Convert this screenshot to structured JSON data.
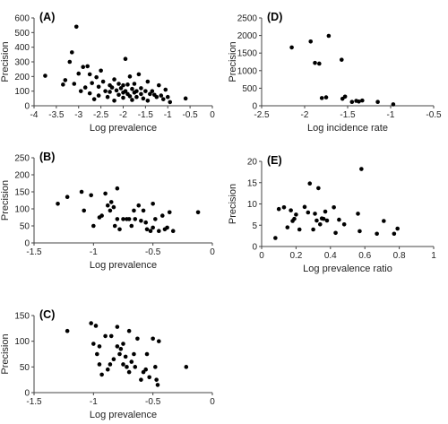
{
  "chart_data": [
    {
      "panel": "(A)",
      "type": "scatter",
      "xlabel": "Log prevalence",
      "ylabel": "Precision",
      "xlim": [
        -4,
        0
      ],
      "ylim": [
        0,
        600
      ],
      "xticks": [
        -4,
        -3.5,
        -3,
        -2.5,
        -2,
        -1.5,
        -1,
        -0.5,
        0
      ],
      "yticks": [
        0,
        100,
        200,
        300,
        400,
        500,
        600
      ],
      "points": [
        [
          -3.75,
          205
        ],
        [
          -3.35,
          145
        ],
        [
          -3.3,
          175
        ],
        [
          -3.2,
          300
        ],
        [
          -3.15,
          365
        ],
        [
          -3.1,
          150
        ],
        [
          -3.05,
          540
        ],
        [
          -3.0,
          220
        ],
        [
          -2.95,
          100
        ],
        [
          -2.9,
          265
        ],
        [
          -2.85,
          125
        ],
        [
          -2.8,
          270
        ],
        [
          -2.75,
          215
        ],
        [
          -2.75,
          85
        ],
        [
          -2.7,
          155
        ],
        [
          -2.65,
          45
        ],
        [
          -2.6,
          195
        ],
        [
          -2.55,
          70
        ],
        [
          -2.55,
          130
        ],
        [
          -2.5,
          240
        ],
        [
          -2.45,
          165
        ],
        [
          -2.4,
          100
        ],
        [
          -2.35,
          60
        ],
        [
          -2.3,
          95
        ],
        [
          -2.3,
          140
        ],
        [
          -2.25,
          125
        ],
        [
          -2.2,
          180
        ],
        [
          -2.2,
          35
        ],
        [
          -2.15,
          105
        ],
        [
          -2.1,
          150
        ],
        [
          -2.1,
          75
        ],
        [
          -2.05,
          120
        ],
        [
          -2.0,
          90
        ],
        [
          -2.0,
          140
        ],
        [
          -2.0,
          55
        ],
        [
          -1.95,
          320
        ],
        [
          -1.95,
          100
        ],
        [
          -1.9,
          145
        ],
        [
          -1.9,
          80
        ],
        [
          -1.85,
          200
        ],
        [
          -1.85,
          65
        ],
        [
          -1.8,
          115
        ],
        [
          -1.8,
          40
        ],
        [
          -1.75,
          150
        ],
        [
          -1.75,
          90
        ],
        [
          -1.7,
          100
        ],
        [
          -1.7,
          60
        ],
        [
          -1.65,
          215
        ],
        [
          -1.6,
          80
        ],
        [
          -1.6,
          120
        ],
        [
          -1.55,
          50
        ],
        [
          -1.5,
          100
        ],
        [
          -1.45,
          165
        ],
        [
          -1.45,
          35
        ],
        [
          -1.4,
          80
        ],
        [
          -1.35,
          100
        ],
        [
          -1.3,
          75
        ],
        [
          -1.25,
          60
        ],
        [
          -1.2,
          140
        ],
        [
          -1.15,
          70
        ],
        [
          -1.1,
          45
        ],
        [
          -1.05,
          110
        ],
        [
          -1.0,
          60
        ],
        [
          -0.95,
          25
        ],
        [
          -0.6,
          50
        ]
      ]
    },
    {
      "panel": "(B)",
      "type": "scatter",
      "xlabel": "Log prevalence",
      "ylabel": "Precision",
      "xlim": [
        -1.5,
        0
      ],
      "ylim": [
        0,
        250
      ],
      "xticks": [
        -1.5,
        -1,
        -0.5,
        0
      ],
      "yticks": [
        0,
        50,
        100,
        150,
        200,
        250
      ],
      "points": [
        [
          -1.3,
          115
        ],
        [
          -1.22,
          135
        ],
        [
          -1.1,
          150
        ],
        [
          -1.08,
          95
        ],
        [
          -1.02,
          140
        ],
        [
          -1.0,
          50
        ],
        [
          -0.95,
          75
        ],
        [
          -0.93,
          80
        ],
        [
          -0.9,
          145
        ],
        [
          -0.88,
          110
        ],
        [
          -0.86,
          95
        ],
        [
          -0.85,
          120
        ],
        [
          -0.83,
          105
        ],
        [
          -0.82,
          50
        ],
        [
          -0.8,
          70
        ],
        [
          -0.8,
          160
        ],
        [
          -0.78,
          40
        ],
        [
          -0.75,
          70
        ],
        [
          -0.72,
          70
        ],
        [
          -0.7,
          70
        ],
        [
          -0.68,
          50
        ],
        [
          -0.66,
          95
        ],
        [
          -0.65,
          70
        ],
        [
          -0.62,
          110
        ],
        [
          -0.6,
          65
        ],
        [
          -0.58,
          95
        ],
        [
          -0.56,
          60
        ],
        [
          -0.55,
          40
        ],
        [
          -0.52,
          35
        ],
        [
          -0.5,
          45
        ],
        [
          -0.5,
          115
        ],
        [
          -0.48,
          70
        ],
        [
          -0.45,
          35
        ],
        [
          -0.42,
          80
        ],
        [
          -0.4,
          40
        ],
        [
          -0.38,
          45
        ],
        [
          -0.36,
          90
        ],
        [
          -0.33,
          35
        ],
        [
          -0.12,
          90
        ]
      ]
    },
    {
      "panel": "(C)",
      "type": "scatter",
      "xlabel": "Log prevalence",
      "ylabel": "Precision",
      "xlim": [
        -1.5,
        0
      ],
      "ylim": [
        0,
        150
      ],
      "xticks": [
        -1.5,
        -1,
        -0.5,
        0
      ],
      "yticks": [
        0,
        50,
        100,
        150
      ],
      "points": [
        [
          -1.22,
          120
        ],
        [
          -1.02,
          135
        ],
        [
          -1.0,
          95
        ],
        [
          -0.98,
          130
        ],
        [
          -0.97,
          75
        ],
        [
          -0.95,
          90
        ],
        [
          -0.95,
          55
        ],
        [
          -0.93,
          35
        ],
        [
          -0.9,
          110
        ],
        [
          -0.88,
          45
        ],
        [
          -0.86,
          55
        ],
        [
          -0.85,
          110
        ],
        [
          -0.83,
          65
        ],
        [
          -0.8,
          90
        ],
        [
          -0.8,
          128
        ],
        [
          -0.78,
          75
        ],
        [
          -0.77,
          85
        ],
        [
          -0.75,
          95
        ],
        [
          -0.75,
          55
        ],
        [
          -0.73,
          70
        ],
        [
          -0.72,
          50
        ],
        [
          -0.7,
          40
        ],
        [
          -0.7,
          120
        ],
        [
          -0.68,
          60
        ],
        [
          -0.66,
          75
        ],
        [
          -0.65,
          50
        ],
        [
          -0.63,
          105
        ],
        [
          -0.6,
          25
        ],
        [
          -0.58,
          40
        ],
        [
          -0.56,
          45
        ],
        [
          -0.55,
          75
        ],
        [
          -0.53,
          30
        ],
        [
          -0.5,
          105
        ],
        [
          -0.48,
          50
        ],
        [
          -0.47,
          25
        ],
        [
          -0.46,
          15
        ],
        [
          -0.45,
          100
        ],
        [
          -0.22,
          50
        ]
      ]
    },
    {
      "panel": "(D)",
      "type": "scatter",
      "xlabel": "Log incidence rate",
      "ylabel": "Precision",
      "xlim": [
        -2.5,
        -0.5
      ],
      "ylim": [
        0,
        2500
      ],
      "xticks": [
        -2.5,
        -2,
        -1.5,
        -1,
        -0.5
      ],
      "yticks": [
        0,
        500,
        1000,
        1500,
        2000,
        2500
      ],
      "points": [
        [
          -2.15,
          1660
        ],
        [
          -1.93,
          1830
        ],
        [
          -1.88,
          1220
        ],
        [
          -1.83,
          1200
        ],
        [
          -1.8,
          220
        ],
        [
          -1.75,
          240
        ],
        [
          -1.72,
          1990
        ],
        [
          -1.57,
          1310
        ],
        [
          -1.56,
          200
        ],
        [
          -1.53,
          260
        ],
        [
          -1.45,
          110
        ],
        [
          -1.4,
          140
        ],
        [
          -1.37,
          120
        ],
        [
          -1.33,
          150
        ],
        [
          -1.15,
          110
        ],
        [
          -0.97,
          40
        ]
      ]
    },
    {
      "panel": "(E)",
      "type": "scatter",
      "xlabel": "Log prevalence ratio",
      "ylabel": "Precision",
      "xlim": [
        0,
        1
      ],
      "ylim": [
        0,
        20
      ],
      "xticks": [
        0,
        0.2,
        0.4,
        0.6,
        0.8,
        1
      ],
      "yticks": [
        0,
        5,
        10,
        15,
        20
      ],
      "points": [
        [
          0.08,
          2
        ],
        [
          0.1,
          8.8
        ],
        [
          0.13,
          9.2
        ],
        [
          0.15,
          4.5
        ],
        [
          0.17,
          8.5
        ],
        [
          0.18,
          6
        ],
        [
          0.19,
          6.5
        ],
        [
          0.2,
          7.5
        ],
        [
          0.22,
          4
        ],
        [
          0.25,
          9.3
        ],
        [
          0.27,
          8
        ],
        [
          0.28,
          14.8
        ],
        [
          0.3,
          4
        ],
        [
          0.31,
          7.7
        ],
        [
          0.32,
          6.1
        ],
        [
          0.33,
          13.7
        ],
        [
          0.34,
          5.2
        ],
        [
          0.35,
          6.6
        ],
        [
          0.36,
          6.5
        ],
        [
          0.37,
          8.2
        ],
        [
          0.38,
          6.1
        ],
        [
          0.42,
          9.2
        ],
        [
          0.43,
          3.2
        ],
        [
          0.45,
          6.3
        ],
        [
          0.48,
          5.2
        ],
        [
          0.56,
          7.7
        ],
        [
          0.57,
          3.6
        ],
        [
          0.58,
          18.2
        ],
        [
          0.67,
          3.0
        ],
        [
          0.71,
          6.0
        ],
        [
          0.77,
          3.0
        ],
        [
          0.79,
          4.2
        ]
      ]
    }
  ]
}
